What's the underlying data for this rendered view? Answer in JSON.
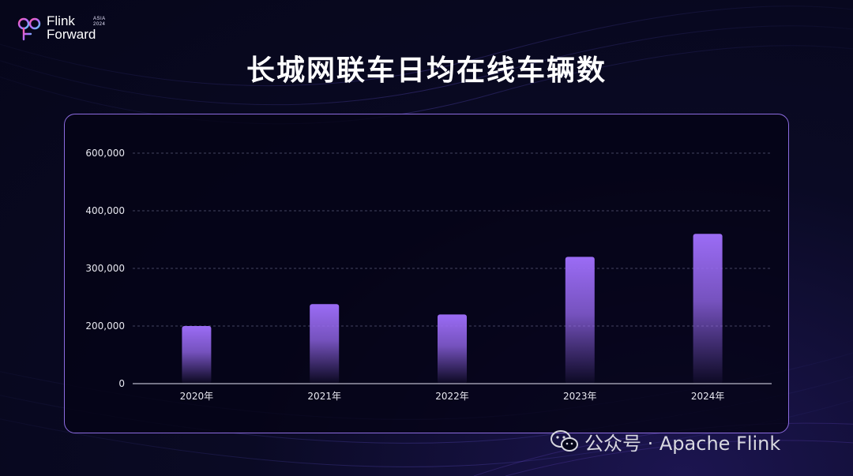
{
  "brand": {
    "line1": "Flink",
    "line2": "Forward",
    "badge_line1": "ASIA",
    "badge_line2": "2024"
  },
  "chart_data": {
    "type": "bar",
    "title": "长城网联车日均在线车辆数",
    "categories": [
      "2020年",
      "2021年",
      "2022年",
      "2023年",
      "2024年"
    ],
    "values": [
      200000,
      238000,
      220000,
      320000,
      360000
    ],
    "y_ticks": [
      0,
      200000,
      300000,
      400000,
      600000
    ],
    "y_tick_labels": [
      "0",
      "200,000",
      "300,000",
      "400,000",
      "600,000"
    ],
    "bar_color": "#9b6cf5",
    "grid": true
  },
  "watermark": {
    "text": "公众号 · Apache Flink"
  },
  "colors": {
    "accent": "#9b6cf5",
    "panel_border": "#8c6be0",
    "background": "#06061a"
  }
}
